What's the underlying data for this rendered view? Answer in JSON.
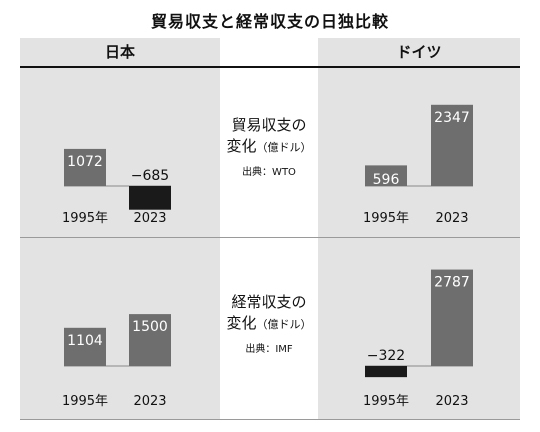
{
  "title": "貿易収支と経常収支の日独比較",
  "columns": {
    "left": "日本",
    "right": "ドイツ"
  },
  "rows": [
    {
      "label_line1": "貿易収支の",
      "label_line2": "変化",
      "label_unit": "（億ドル）",
      "source": "出典：WTO"
    },
    {
      "label_line1": "経常収支の",
      "label_line2": "変化",
      "label_unit": "（億ドル）",
      "source": "出典：IMF"
    }
  ],
  "colors": {
    "positive": "#6e6e6e",
    "negative": "#1a1a1a",
    "panel": "#e3e3e3"
  },
  "chart_data": [
    {
      "type": "bar",
      "country": "日本",
      "measure": "貿易収支の変化",
      "categories": [
        "1995年",
        "2023"
      ],
      "values": [
        1072,
        -685
      ],
      "value_labels": [
        "1072",
        "−685"
      ]
    },
    {
      "type": "bar",
      "country": "ドイツ",
      "measure": "貿易収支の変化",
      "categories": [
        "1995年",
        "2023"
      ],
      "values": [
        596,
        2347
      ],
      "value_labels": [
        "596",
        "2347"
      ]
    },
    {
      "type": "bar",
      "country": "日本",
      "measure": "経常収支の変化",
      "categories": [
        "1995年",
        "2023"
      ],
      "values": [
        1104,
        1500
      ],
      "value_labels": [
        "1104",
        "1500"
      ]
    },
    {
      "type": "bar",
      "country": "ドイツ",
      "measure": "経常収支の変化",
      "categories": [
        "1995年",
        "2023"
      ],
      "values": [
        -322,
        2787
      ],
      "value_labels": [
        "−322",
        "2787"
      ]
    }
  ]
}
